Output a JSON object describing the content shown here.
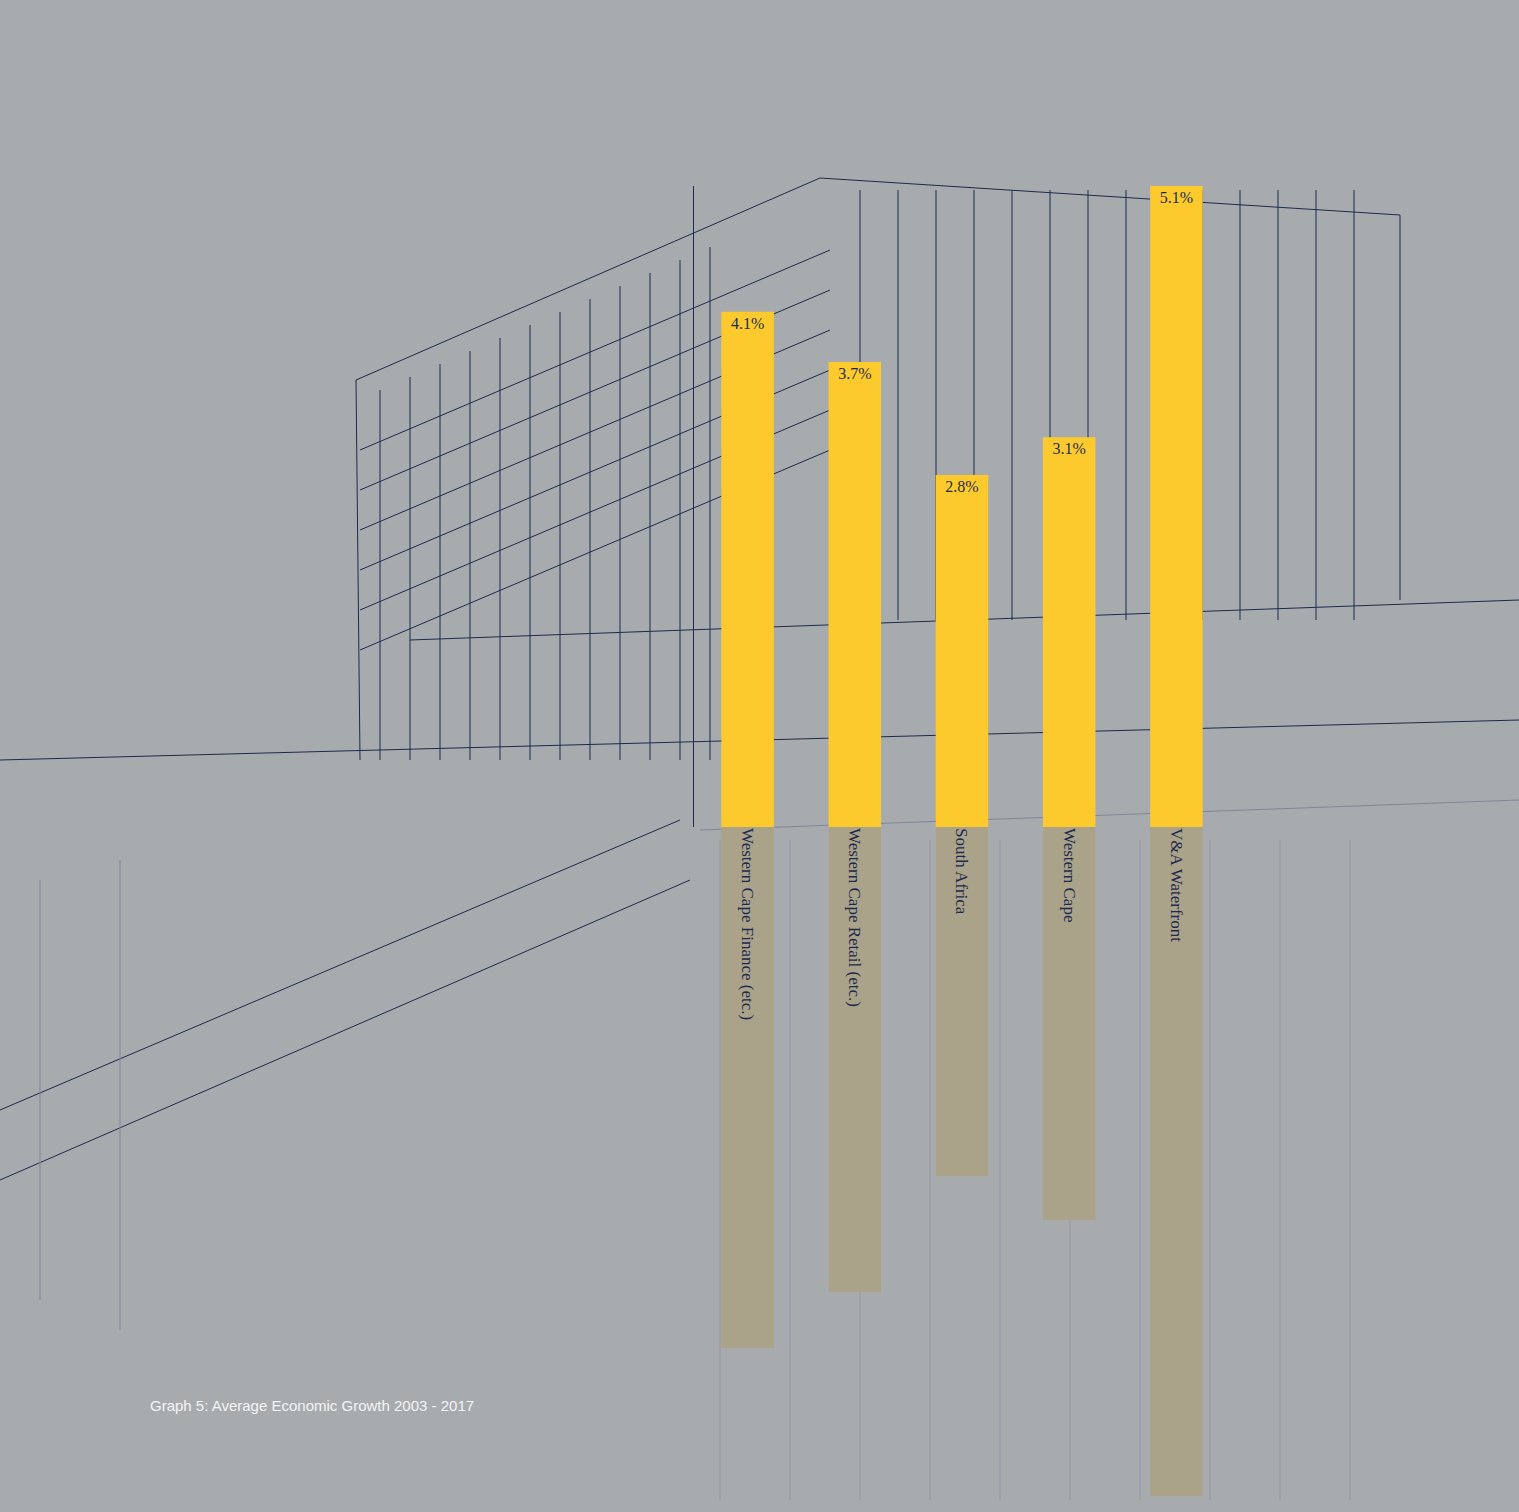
{
  "chart_data": {
    "type": "bar",
    "title": "Graph 5: Average Economic Growth 2003 - 2017",
    "categories": [
      "Western Cape Finance (etc.)",
      "Western Cape Retail (etc.)",
      "South Africa",
      "Western Cape",
      "V&A Waterfront"
    ],
    "values": [
      4.1,
      3.7,
      2.8,
      3.1,
      5.1
    ],
    "value_labels": [
      "4.1%",
      "3.7%",
      "2.8%",
      "3.1%",
      "5.1%"
    ],
    "color": "#fdca2e",
    "ylim": [
      0,
      5.1
    ],
    "yticks": [],
    "tick_labels": "x",
    "data_labels": true,
    "grid": false
  }
}
